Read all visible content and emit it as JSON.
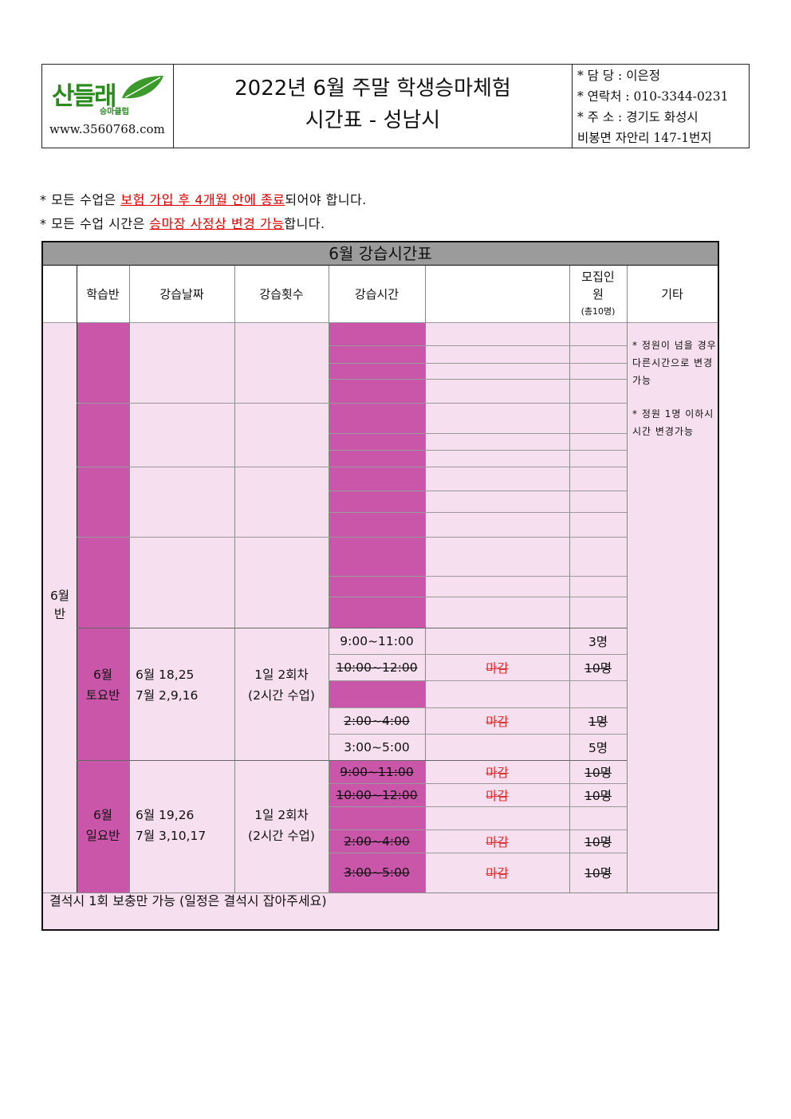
{
  "header": {
    "logo_text": "산들래",
    "logo_sub": "승마클럽",
    "url": "www.3560768.com",
    "title_line1": "2022년 6월 주말 학생승마체험",
    "title_line2": "시간표 - 성남시",
    "info": [
      "* 담  당 : 이은정",
      "* 연락처 : 010-3344-0231",
      "* 주  소 : 경기도 화성시",
      "비봉면 자안리 147-1번지"
    ]
  },
  "notes": {
    "n1_pre": "* 모든 수업은 ",
    "n1_red": "보험 가입 후 4개월 안에 종료",
    "n1_post": "되어야 합니다.",
    "n2_pre": "* 모든 수업 시간은 ",
    "n2_red": "승마장 사정상 변경 가능",
    "n2_post": "합니다."
  },
  "table": {
    "title": "6월 강습시간표",
    "headers": {
      "class": "학습반",
      "date": "강습날짜",
      "count": "강습횟수",
      "time": "강습시간",
      "capacity_l1": "모집인",
      "capacity_l2": "원",
      "capacity_l3": "(총10명)",
      "etc": "기타"
    },
    "month_label_1": "6월",
    "month_label_2": "반",
    "saturday": {
      "class_1": "6월",
      "class_2": "토요반",
      "date_1": "6월 18,25",
      "date_2": "7월 2,9,16",
      "count_1": "1일 2회차",
      "count_2": "(2시간 수업)",
      "rows": [
        {
          "time": "9:00~11:00",
          "status": "",
          "cap": "3명"
        },
        {
          "time": "10:00~12:00",
          "status": "마감",
          "cap": "10명"
        },
        {
          "time": "",
          "status": "",
          "cap": ""
        },
        {
          "time": "2:00~4:00",
          "status": "마감",
          "cap": "1명"
        },
        {
          "time": "3:00~5:00",
          "status": "",
          "cap": "5명"
        }
      ]
    },
    "sunday": {
      "class_1": "6월",
      "class_2": "일요반",
      "date_1": "6월 19,26",
      "date_2": "7월 3,10,17",
      "count_1": "1일 2회차",
      "count_2": "(2시간 수업)",
      "rows": [
        {
          "time": "9:00~11:00",
          "status": "마감",
          "cap": "10명"
        },
        {
          "time": "10:00~12:00",
          "status": "마감",
          "cap": "10명"
        },
        {
          "time": "",
          "status": "",
          "cap": ""
        },
        {
          "time": "2:00~4:00",
          "status": "마감",
          "cap": "10명"
        },
        {
          "time": "3:00~5:00",
          "status": "마감",
          "cap": "10명"
        }
      ]
    },
    "etc_1": "* 정원이 넘을 경우 다른시간으로 변경가능",
    "etc_2": "* 정원 1명 이하시 시간 변경가능",
    "footnote": "결석시 1회 보충만 가능 (일정은 결석시 잡아주세요)"
  }
}
